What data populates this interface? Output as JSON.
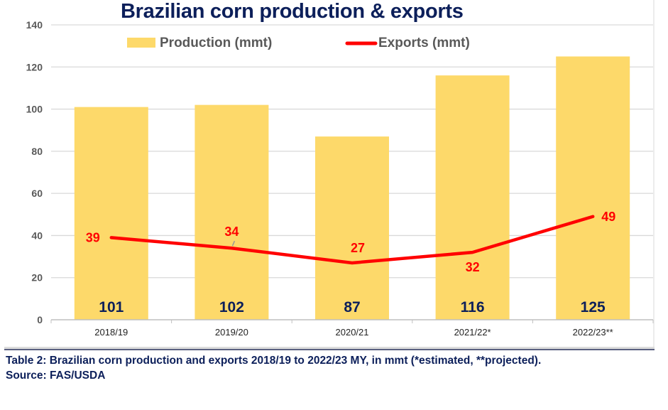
{
  "chart_data": {
    "type": "bar",
    "title": "Brazilian corn production & exports",
    "categories": [
      "2018/19",
      "2019/20",
      "2020/21",
      "2021/22*",
      "2022/23**"
    ],
    "series": [
      {
        "name": "Production (mmt)",
        "type": "bar",
        "color": "#fdd96a",
        "values": [
          101,
          102,
          87,
          116,
          125
        ],
        "labels": [
          "101",
          "102",
          "87",
          "116",
          "125"
        ]
      },
      {
        "name": "Exports (mmt)",
        "type": "line",
        "color": "#ff0000",
        "values": [
          39,
          34,
          27,
          32,
          49
        ],
        "labels": [
          "39",
          "34",
          "27",
          "32",
          "49"
        ]
      }
    ],
    "xlabel": "",
    "ylabel": "",
    "ylim": [
      0,
      140
    ],
    "yticks": [
      "0",
      "20",
      "40",
      "60",
      "80",
      "100",
      "120",
      "140"
    ],
    "grid": true,
    "legend": "top"
  },
  "caption": {
    "line1": "Table 2: Brazilian corn production and exports 2018/19 to 2022/23 MY, in mmt (*estimated, **projected).",
    "line2": "Source: FAS/USDA"
  }
}
